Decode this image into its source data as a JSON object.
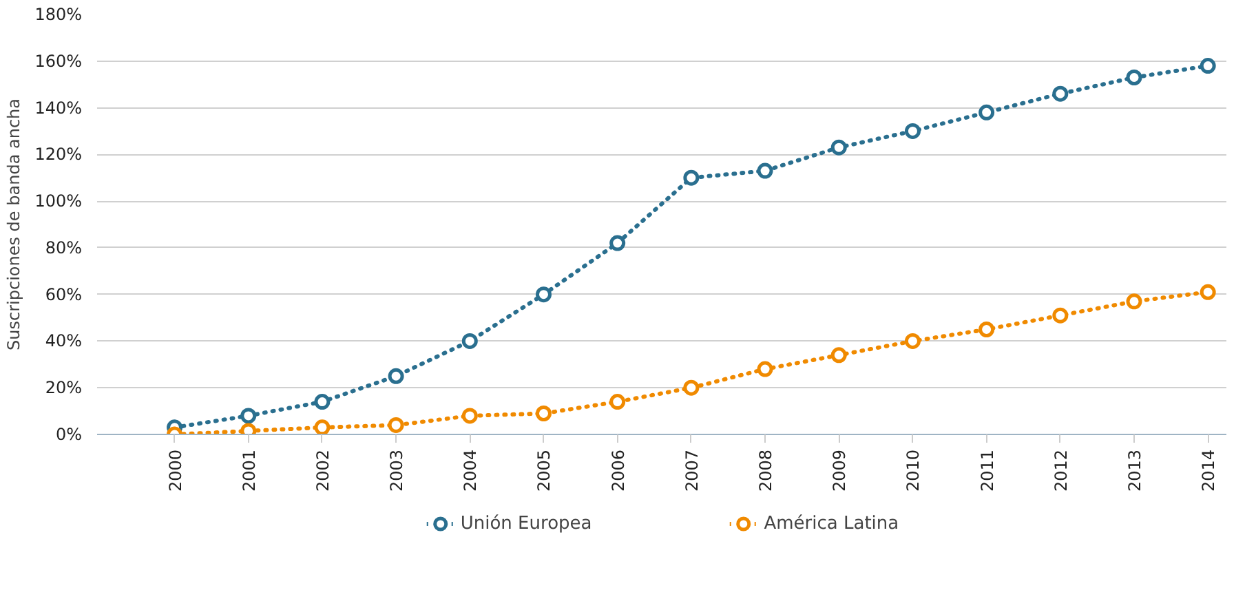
{
  "chart_data": {
    "type": "line",
    "ylabel": "Suscripciones de banda ancha",
    "categories": [
      "2000",
      "2001",
      "2002",
      "2003",
      "2004",
      "2005",
      "2006",
      "2007",
      "2008",
      "2009",
      "2010",
      "2011",
      "2012",
      "2013",
      "2014"
    ],
    "series": [
      {
        "name": "Unión Europea",
        "color": "#2a6f8f",
        "values": [
          3,
          8,
          14,
          25,
          40,
          60,
          82,
          110,
          113,
          123,
          130,
          138,
          146,
          153,
          158
        ]
      },
      {
        "name": "América Latina",
        "color": "#f08a00",
        "values": [
          0,
          1.5,
          3,
          4,
          8,
          9,
          14,
          20,
          28,
          34,
          40,
          45,
          51,
          57,
          61
        ]
      }
    ],
    "ylim": [
      0,
      180
    ],
    "yticks": [
      {
        "value": 0,
        "label": "0%"
      },
      {
        "value": 20,
        "label": "20%"
      },
      {
        "value": 40,
        "label": "40%"
      },
      {
        "value": 60,
        "label": "60%"
      },
      {
        "value": 80,
        "label": "80%"
      },
      {
        "value": 100,
        "label": "100%"
      },
      {
        "value": 120,
        "label": "120%"
      },
      {
        "value": 140,
        "label": "140%"
      },
      {
        "value": 160,
        "label": "160%"
      },
      {
        "value": 180,
        "label": "180%"
      }
    ],
    "grid": "y",
    "legend": "bottom",
    "marker": "circle",
    "line_style": "dotted"
  }
}
